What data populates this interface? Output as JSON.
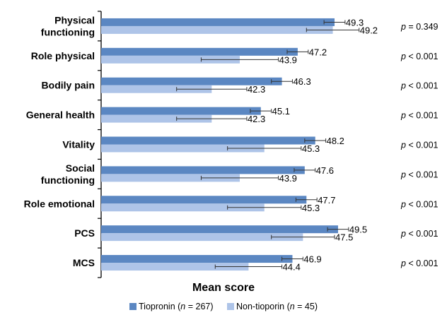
{
  "chart_data": {
    "type": "bar",
    "orientation": "horizontal",
    "categories": [
      [
        "Physical",
        "functioning"
      ],
      [
        "Role physical"
      ],
      [
        "Bodily pain"
      ],
      [
        "General health"
      ],
      [
        "Vitality"
      ],
      [
        "Social",
        "functioning"
      ],
      [
        "Role emotional"
      ],
      [
        "PCS"
      ],
      [
        "MCS"
      ]
    ],
    "series": [
      {
        "legend_prefix": "Tiopronin (",
        "legend_n_symbol": "n",
        "legend_suffix": " = 267)",
        "color": "#5b87c2",
        "values": [
          49.3,
          47.2,
          46.3,
          45.1,
          48.2,
          47.6,
          47.7,
          49.5,
          46.9
        ],
        "value_labels": [
          "49.3",
          "47.2",
          "46.3",
          "45.1",
          "48.2",
          "47.6",
          "47.7",
          "49.5",
          "46.9"
        ],
        "error": [
          0.6,
          0.6,
          0.6,
          0.6,
          0.6,
          0.6,
          0.6,
          0.6,
          0.6
        ]
      },
      {
        "legend_prefix": "Non-tioporin (",
        "legend_n_symbol": "n",
        "legend_suffix": " = 45)",
        "color": "#aec4e8",
        "values": [
          49.2,
          43.9,
          42.3,
          42.3,
          45.3,
          43.9,
          45.3,
          47.5,
          44.4
        ],
        "value_labels": [
          "49.2",
          "43.9",
          "42.3",
          "42.3",
          "45.3",
          "43.9",
          "45.3",
          "47.5",
          "44.4"
        ],
        "error": [
          1.5,
          2.2,
          2.0,
          2.0,
          2.1,
          2.2,
          2.1,
          1.8,
          1.9
        ]
      }
    ],
    "p_values": [
      {
        "sym": "p",
        "text": " = 0.349"
      },
      {
        "sym": "p",
        "text": " < 0.001"
      },
      {
        "sym": "p",
        "text": " < 0.001"
      },
      {
        "sym": "p",
        "text": " < 0.001"
      },
      {
        "sym": "p",
        "text": " < 0.001"
      },
      {
        "sym": "p",
        "text": " < 0.001"
      },
      {
        "sym": "p",
        "text": " < 0.001"
      },
      {
        "sym": "p",
        "text": " < 0.001"
      },
      {
        "sym": "p",
        "text": " < 0.001"
      }
    ],
    "xlabel": "Mean score",
    "xlim": [
      36,
      52
    ],
    "legend_position": "bottom",
    "grid": false
  }
}
